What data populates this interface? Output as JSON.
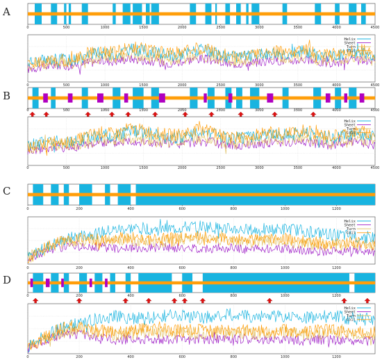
{
  "colors": {
    "helix": "#19b4e0",
    "sheet": "#a020c8",
    "turn": "#e0c060",
    "coil": "#ff9e0a",
    "arrow": "#e01010",
    "sheetBand": "#b000c0"
  },
  "chart_data": [
    {
      "type": "line",
      "panel": "A",
      "xlim": [
        0,
        4500
      ],
      "xticks": [
        "0",
        "500",
        "1000",
        "1500",
        "2000",
        "2500",
        "3000",
        "3500",
        "4000",
        "4500"
      ],
      "legend": [
        "Helix",
        "Sheet",
        "Turn",
        "Coil"
      ],
      "legend_position": "top-right",
      "grid": true,
      "ss_track": {
        "xlim": [
          0,
          4500
        ],
        "helix_segments": [
          [
            90,
            180
          ],
          [
            300,
            380
          ],
          [
            470,
            500
          ],
          [
            530,
            560
          ],
          [
            700,
            780
          ],
          [
            1100,
            1140
          ],
          [
            1230,
            1330
          ],
          [
            1360,
            1480
          ],
          [
            1530,
            1580
          ],
          [
            1600,
            1700
          ],
          [
            2100,
            2180
          ],
          [
            2300,
            2380
          ],
          [
            2430,
            2450
          ],
          [
            2560,
            2620
          ],
          [
            2700,
            2760
          ],
          [
            2830,
            2860
          ],
          [
            2900,
            3000
          ],
          [
            3300,
            3360
          ],
          [
            3720,
            3800
          ],
          [
            3980,
            4040
          ],
          [
            4160,
            4260
          ],
          [
            4320,
            4380
          ]
        ],
        "sheet_segments": []
      },
      "series": [
        {
          "name": "Helix",
          "values": [
            0.42,
            0.45,
            0.5,
            0.46,
            0.55,
            0.62,
            0.58,
            0.7,
            0.66,
            0.6,
            0.55,
            0.62,
            0.68,
            0.6,
            0.52,
            0.55,
            0.58,
            0.62,
            0.6,
            0.66,
            0.58,
            0.55,
            0.6,
            0.64,
            0.56
          ]
        },
        {
          "name": "Sheet",
          "values": [
            0.28,
            0.32,
            0.36,
            0.35,
            0.4,
            0.45,
            0.44,
            0.5,
            0.46,
            0.42,
            0.4,
            0.46,
            0.5,
            0.44,
            0.38,
            0.4,
            0.42,
            0.46,
            0.44,
            0.48,
            0.42,
            0.4,
            0.44,
            0.46,
            0.4
          ]
        },
        {
          "name": "Turn",
          "values": [
            0.35,
            0.38,
            0.42,
            0.4,
            0.46,
            0.52,
            0.5,
            0.56,
            0.52,
            0.48,
            0.46,
            0.52,
            0.56,
            0.5,
            0.44,
            0.46,
            0.48,
            0.52,
            0.5,
            0.54,
            0.48,
            0.46,
            0.5,
            0.52,
            0.46
          ]
        },
        {
          "name": "Coil",
          "values": [
            0.38,
            0.42,
            0.48,
            0.44,
            0.58,
            0.66,
            0.62,
            0.74,
            0.7,
            0.64,
            0.6,
            0.68,
            0.72,
            0.64,
            0.55,
            0.58,
            0.62,
            0.66,
            0.64,
            0.7,
            0.62,
            0.58,
            0.64,
            0.68,
            0.6
          ]
        }
      ]
    },
    {
      "type": "line",
      "panel": "B",
      "xlim": [
        0,
        4500
      ],
      "xticks": [
        "0",
        "500",
        "1000",
        "1500",
        "2000",
        "2500",
        "3000",
        "3500",
        "4000",
        "4500"
      ],
      "legend": [
        "Helix",
        "Sheet",
        "Turn",
        "Coil"
      ],
      "legend_position": "top-right",
      "grid": true,
      "arrows_x": [
        60,
        240,
        780,
        1090,
        1300,
        1650,
        2040,
        2380,
        2760,
        3200,
        3700
      ],
      "ss_track": {
        "xlim": [
          0,
          4500
        ],
        "helix_segments": [
          [
            60,
            140
          ],
          [
            300,
            360
          ],
          [
            700,
            780
          ],
          [
            1100,
            1200
          ],
          [
            1360,
            1500
          ],
          [
            1600,
            1700
          ],
          [
            2100,
            2200
          ],
          [
            2330,
            2420
          ],
          [
            2560,
            2640
          ],
          [
            2700,
            2780
          ],
          [
            2880,
            3000
          ],
          [
            3300,
            3380
          ],
          [
            3700,
            3800
          ],
          [
            3980,
            4060
          ],
          [
            4160,
            4260
          ]
        ],
        "sheet_segments": [
          [
            200,
            260
          ],
          [
            520,
            580
          ],
          [
            900,
            980
          ],
          [
            1250,
            1300
          ],
          [
            1700,
            1780
          ],
          [
            2280,
            2320
          ],
          [
            2600,
            2650
          ],
          [
            3100,
            3180
          ],
          [
            3860,
            3920
          ],
          [
            4100,
            4140
          ],
          [
            4300,
            4360
          ]
        ]
      },
      "series": [
        {
          "name": "Helix",
          "values": [
            0.4,
            0.46,
            0.52,
            0.48,
            0.56,
            0.64,
            0.6,
            0.72,
            0.68,
            0.62,
            0.56,
            0.6,
            0.66,
            0.62,
            0.54,
            0.58,
            0.6,
            0.64,
            0.62,
            0.68,
            0.6,
            0.56,
            0.62,
            0.66,
            0.58
          ]
        },
        {
          "name": "Sheet",
          "values": [
            0.3,
            0.34,
            0.38,
            0.36,
            0.42,
            0.48,
            0.46,
            0.52,
            0.48,
            0.44,
            0.42,
            0.46,
            0.5,
            0.46,
            0.4,
            0.42,
            0.44,
            0.48,
            0.46,
            0.5,
            0.44,
            0.42,
            0.46,
            0.48,
            0.42
          ]
        },
        {
          "name": "Turn",
          "values": [
            0.34,
            0.38,
            0.44,
            0.42,
            0.48,
            0.54,
            0.52,
            0.58,
            0.54,
            0.5,
            0.48,
            0.52,
            0.56,
            0.52,
            0.46,
            0.48,
            0.5,
            0.54,
            0.52,
            0.56,
            0.5,
            0.48,
            0.52,
            0.54,
            0.48
          ]
        },
        {
          "name": "Coil",
          "values": [
            0.36,
            0.44,
            0.5,
            0.46,
            0.6,
            0.68,
            0.64,
            0.76,
            0.72,
            0.66,
            0.62,
            0.68,
            0.74,
            0.66,
            0.56,
            0.6,
            0.64,
            0.68,
            0.66,
            0.72,
            0.64,
            0.6,
            0.66,
            0.7,
            0.62
          ]
        }
      ]
    },
    {
      "type": "line",
      "panel": "C",
      "xlim": [
        0,
        1350
      ],
      "xticks": [
        "0",
        "200",
        "400",
        "600",
        "800",
        "1000",
        "1200"
      ],
      "legend": [
        "Helix",
        "Sheet",
        "Turn",
        "Coil"
      ],
      "legend_position": "top-right",
      "grid": true,
      "ss_track": {
        "xlim": [
          0,
          1350
        ],
        "helix_segments": [
          [
            20,
            60
          ],
          [
            90,
            120
          ],
          [
            140,
            160
          ],
          [
            200,
            250
          ],
          [
            300,
            320
          ],
          [
            350,
            400
          ],
          [
            420,
            1350
          ]
        ],
        "sheet_segments": []
      },
      "series": [
        {
          "name": "Helix",
          "values": [
            0.15,
            0.3,
            0.45,
            0.55,
            0.62,
            0.66,
            0.72,
            0.75,
            0.76,
            0.72,
            0.74,
            0.78,
            0.8,
            0.76,
            0.74,
            0.72,
            0.7,
            0.72,
            0.74,
            0.7,
            0.66,
            0.62,
            0.6,
            0.58,
            0.56
          ]
        },
        {
          "name": "Sheet",
          "values": [
            0.1,
            0.25,
            0.35,
            0.38,
            0.38,
            0.36,
            0.34,
            0.34,
            0.35,
            0.36,
            0.34,
            0.33,
            0.34,
            0.33,
            0.34,
            0.32,
            0.33,
            0.34,
            0.32,
            0.3,
            0.28,
            0.27,
            0.28,
            0.26,
            0.25
          ]
        },
        {
          "name": "Turn",
          "values": [
            0.12,
            0.28,
            0.42,
            0.5,
            0.5,
            0.48,
            0.5,
            0.52,
            0.5,
            0.48,
            0.5,
            0.52,
            0.54,
            0.5,
            0.48,
            0.47,
            0.48,
            0.5,
            0.48,
            0.45,
            0.42,
            0.4,
            0.42,
            0.4,
            0.38
          ]
        },
        {
          "name": "Coil",
          "values": [
            0.12,
            0.3,
            0.45,
            0.56,
            0.55,
            0.52,
            0.55,
            0.56,
            0.54,
            0.52,
            0.55,
            0.56,
            0.58,
            0.54,
            0.52,
            0.5,
            0.52,
            0.55,
            0.52,
            0.48,
            0.45,
            0.44,
            0.46,
            0.44,
            0.42
          ]
        }
      ]
    },
    {
      "type": "line",
      "panel": "D",
      "xlim": [
        0,
        1350
      ],
      "xticks": [
        "0",
        "200",
        "400",
        "600",
        "800",
        "1000",
        "1200"
      ],
      "legend": [
        "Helix",
        "Sheet",
        "Turn",
        "Coil"
      ],
      "legend_position": "top-right",
      "grid": true,
      "arrows_x": [
        30,
        200,
        380,
        470,
        570,
        610,
        680,
        940,
        1230,
        1320
      ],
      "ss_track": {
        "xlim": [
          0,
          1350
        ],
        "helix_segments": [
          [
            20,
            60
          ],
          [
            90,
            120
          ],
          [
            140,
            160
          ],
          [
            200,
            230
          ],
          [
            260,
            290
          ],
          [
            320,
            340
          ],
          [
            380,
            400
          ],
          [
            430,
            560
          ],
          [
            600,
            640
          ],
          [
            680,
            1250
          ],
          [
            1270,
            1350
          ]
        ],
        "sheet_segments": [
          [
            10,
            20
          ],
          [
            70,
            85
          ],
          [
            130,
            140
          ],
          [
            240,
            250
          ],
          [
            300,
            310
          ]
        ]
      },
      "series": [
        {
          "name": "Helix",
          "values": [
            0.12,
            0.3,
            0.46,
            0.56,
            0.64,
            0.7,
            0.74,
            0.72,
            0.7,
            0.74,
            0.76,
            0.74,
            0.72,
            0.74,
            0.78,
            0.76,
            0.74,
            0.76,
            0.74,
            0.72,
            0.74,
            0.76,
            0.72,
            0.7,
            0.68
          ]
        },
        {
          "name": "Sheet",
          "values": [
            0.1,
            0.26,
            0.36,
            0.4,
            0.38,
            0.3,
            0.28,
            0.28,
            0.3,
            0.3,
            0.28,
            0.28,
            0.3,
            0.28,
            0.28,
            0.3,
            0.28,
            0.3,
            0.28,
            0.26,
            0.28,
            0.28,
            0.26,
            0.26,
            0.25
          ]
        },
        {
          "name": "Turn",
          "values": [
            0.12,
            0.28,
            0.4,
            0.48,
            0.46,
            0.4,
            0.38,
            0.4,
            0.42,
            0.42,
            0.4,
            0.4,
            0.42,
            0.4,
            0.4,
            0.42,
            0.4,
            0.42,
            0.4,
            0.38,
            0.4,
            0.4,
            0.38,
            0.38,
            0.36
          ]
        },
        {
          "name": "Coil",
          "values": [
            0.12,
            0.3,
            0.46,
            0.56,
            0.5,
            0.46,
            0.44,
            0.46,
            0.48,
            0.48,
            0.46,
            0.46,
            0.48,
            0.46,
            0.46,
            0.48,
            0.46,
            0.48,
            0.46,
            0.44,
            0.46,
            0.46,
            0.44,
            0.44,
            0.42
          ]
        }
      ]
    }
  ]
}
